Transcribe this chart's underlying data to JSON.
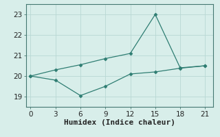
{
  "xlabel": "Humidex (Indice chaleur)",
  "x": [
    0,
    3,
    6,
    9,
    12,
    15,
    18,
    21
  ],
  "line1_y": [
    20.0,
    20.3,
    20.55,
    20.85,
    21.1,
    23.0,
    20.4,
    20.5
  ],
  "line2_y": [
    20.0,
    19.8,
    19.05,
    19.5,
    20.1,
    20.2,
    20.38,
    20.5
  ],
  "line_color": "#2e7d72",
  "bg_color": "#d8eeea",
  "grid_color": "#b8d8d4",
  "xlim": [
    -0.5,
    22
  ],
  "ylim": [
    18.5,
    23.5
  ],
  "yticks": [
    19,
    20,
    21,
    22,
    23
  ],
  "xticks": [
    0,
    3,
    6,
    9,
    12,
    15,
    18,
    21
  ],
  "marker": "D",
  "markersize": 2.5,
  "linewidth": 0.9,
  "xlabel_fontsize": 8,
  "tick_fontsize": 7.5
}
